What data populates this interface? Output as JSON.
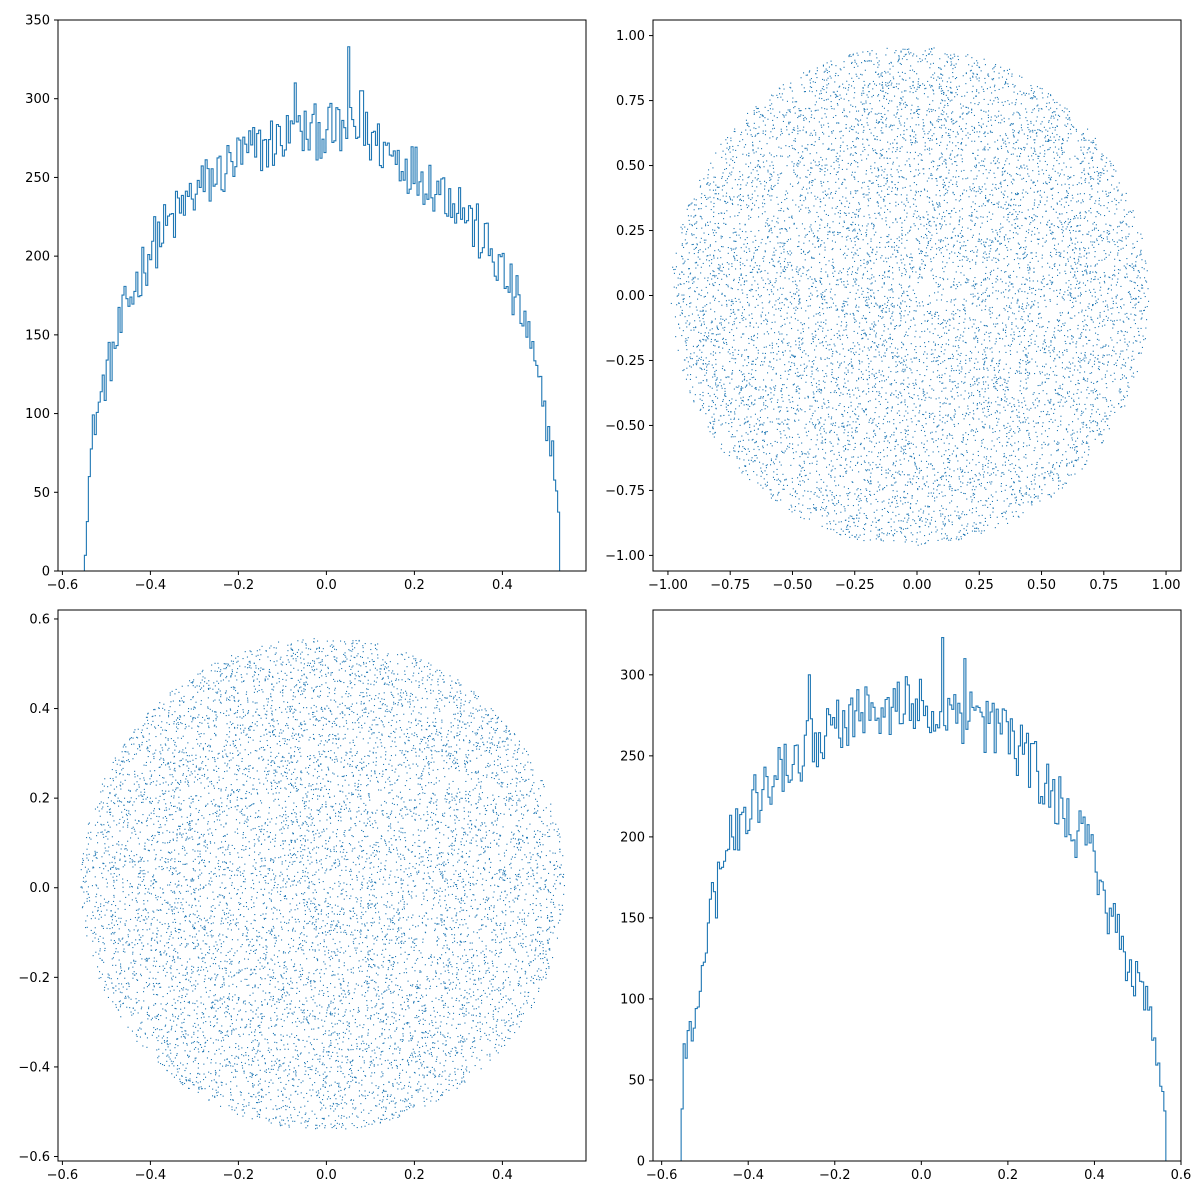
{
  "colors": {
    "series": "#1f77b4",
    "axes": "#000000",
    "background": "#ffffff"
  },
  "chart_data": [
    {
      "panel": "top-left",
      "type": "histogram",
      "style": "step",
      "title": "",
      "xlabel": "",
      "ylabel": "",
      "xlim": [
        -0.61,
        0.59
      ],
      "ylim": [
        0,
        350
      ],
      "xticks": [
        -0.6,
        -0.4,
        -0.2,
        0.0,
        0.2,
        0.4
      ],
      "xtick_labels": [
        "−0.6",
        "−0.4",
        "−0.2",
        "0.0",
        "0.2",
        "0.4"
      ],
      "yticks": [
        0,
        50,
        100,
        150,
        200,
        250,
        300,
        350
      ],
      "ytick_labels": [
        "0",
        "50",
        "100",
        "150",
        "200",
        "250",
        "300",
        "350"
      ],
      "bin_range": [
        -0.55,
        0.53
      ],
      "curve": [
        [
          -0.55,
          0
        ],
        [
          -0.545,
          25
        ],
        [
          -0.54,
          55
        ],
        [
          -0.53,
          90
        ],
        [
          -0.5,
          125
        ],
        [
          -0.45,
          170
        ],
        [
          -0.4,
          205
        ],
        [
          -0.3,
          240
        ],
        [
          -0.2,
          262
        ],
        [
          -0.1,
          275
        ],
        [
          0.0,
          280
        ],
        [
          0.1,
          275
        ],
        [
          0.2,
          255
        ],
        [
          0.3,
          235
        ],
        [
          0.4,
          190
        ],
        [
          0.45,
          160
        ],
        [
          0.5,
          95
        ],
        [
          0.515,
          75
        ],
        [
          0.525,
          45
        ],
        [
          0.53,
          30
        ],
        [
          0.53,
          0
        ]
      ],
      "outliers": [
        [
          0.05,
          333
        ],
        [
          -0.07,
          310
        ],
        [
          0.08,
          305
        ]
      ],
      "noise": 18
    },
    {
      "panel": "top-right",
      "type": "scatter",
      "title": "",
      "xlabel": "",
      "ylabel": "",
      "xlim": [
        -1.06,
        1.06
      ],
      "ylim": [
        -1.06,
        1.06
      ],
      "xticks": [
        -1.0,
        -0.75,
        -0.5,
        -0.25,
        0.0,
        0.25,
        0.5,
        0.75,
        1.0
      ],
      "xtick_labels": [
        "−1.00",
        "−0.75",
        "−0.50",
        "−0.25",
        "0.00",
        "0.25",
        "0.50",
        "0.75",
        "1.00"
      ],
      "yticks": [
        -1.0,
        -0.75,
        -0.5,
        -0.25,
        0.0,
        0.25,
        0.5,
        0.75,
        1.0
      ],
      "ytick_labels": [
        "−1.00",
        "−0.75",
        "−0.50",
        "−0.25",
        "0.00",
        "0.25",
        "0.50",
        "0.75",
        "1.00"
      ],
      "disk": {
        "cx": -0.03,
        "cy": 0.0,
        "r": 0.96
      },
      "points": 9000
    },
    {
      "panel": "bottom-left",
      "type": "scatter",
      "title": "",
      "xlabel": "",
      "ylabel": "",
      "xlim": [
        -0.61,
        0.59
      ],
      "ylim": [
        -0.61,
        0.62
      ],
      "xticks": [
        -0.6,
        -0.4,
        -0.2,
        0.0,
        0.2,
        0.4
      ],
      "xtick_labels": [
        "−0.6",
        "−0.4",
        "−0.2",
        "0.0",
        "0.2",
        "0.4"
      ],
      "yticks": [
        -0.6,
        -0.4,
        -0.2,
        0.0,
        0.2,
        0.4,
        0.6
      ],
      "ytick_labels": [
        "−0.6",
        "−0.4",
        "−0.2",
        "0.0",
        "0.2",
        "0.4",
        "0.6"
      ],
      "disk": {
        "cx": -0.01,
        "cy": 0.01,
        "r": 0.55
      },
      "points": 9000
    },
    {
      "panel": "bottom-right",
      "type": "histogram",
      "style": "step",
      "title": "",
      "xlabel": "",
      "ylabel": "",
      "xlim": [
        -0.62,
        0.6
      ],
      "ylim": [
        0,
        340
      ],
      "xticks": [
        -0.6,
        -0.4,
        -0.2,
        0.0,
        0.2,
        0.4,
        0.6
      ],
      "xtick_labels": [
        "−0.6",
        "−0.4",
        "−0.2",
        "0.0",
        "0.2",
        "0.4",
        "0.6"
      ],
      "yticks": [
        0,
        50,
        100,
        150,
        200,
        250,
        300
      ],
      "ytick_labels": [
        "0",
        "50",
        "100",
        "150",
        "200",
        "250",
        "300"
      ],
      "bin_range": [
        -0.555,
        0.565
      ],
      "curve": [
        [
          -0.555,
          0
        ],
        [
          -0.553,
          30
        ],
        [
          -0.55,
          65
        ],
        [
          -0.53,
          80
        ],
        [
          -0.5,
          135
        ],
        [
          -0.45,
          190
        ],
        [
          -0.4,
          220
        ],
        [
          -0.3,
          245
        ],
        [
          -0.2,
          270
        ],
        [
          -0.1,
          280
        ],
        [
          0.0,
          282
        ],
        [
          0.1,
          275
        ],
        [
          0.2,
          262
        ],
        [
          0.3,
          230
        ],
        [
          0.4,
          185
        ],
        [
          0.45,
          140
        ],
        [
          0.5,
          110
        ],
        [
          0.53,
          90
        ],
        [
          0.55,
          55
        ],
        [
          0.56,
          40
        ],
        [
          0.565,
          25
        ],
        [
          0.565,
          0
        ]
      ],
      "outliers": [
        [
          0.05,
          323
        ],
        [
          0.1,
          310
        ],
        [
          -0.26,
          300
        ]
      ],
      "noise": 18
    }
  ]
}
